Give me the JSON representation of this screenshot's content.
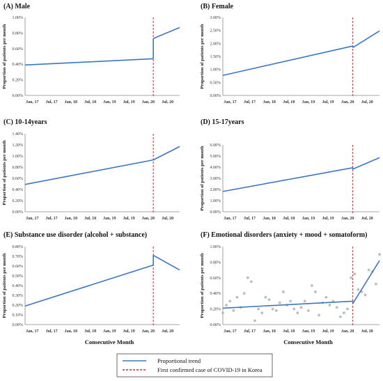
{
  "chart_data": [
    {
      "type": "line",
      "title": "(A) Male",
      "ylabel": "Proportion of  patients per month",
      "xlabel": "",
      "x_ticks": [
        "Jan, 17",
        "Jul, 17",
        "Jan, 18",
        "Jul, 18",
        "Jan, 19",
        "Jul, 19",
        "Jan, 20",
        "Jul, 20"
      ],
      "y_ticks": [
        "0.00%",
        "0.20%",
        "0.40%",
        "0.60%",
        "0.80%",
        "1.00%"
      ],
      "ylim": [
        0,
        1.0
      ],
      "xlim": [
        0,
        44
      ],
      "covid_x": 36.5,
      "series": [
        {
          "x": [
            0,
            36.5
          ],
          "y": [
            0.39,
            0.47
          ]
        },
        {
          "x": [
            36.5,
            44
          ],
          "y": [
            0.73,
            0.87
          ]
        }
      ]
    },
    {
      "type": "line",
      "title": "(B) Female",
      "ylabel": "Proportion of  patients per month",
      "xlabel": "",
      "x_ticks": [
        "Jan, 17",
        "Jul, 17",
        "Jan, 18",
        "Jul, 18",
        "Jan, 19",
        "Jul, 19",
        "Jan, 20",
        "Jul, 20"
      ],
      "y_ticks": [
        "0.00%",
        "0.50%",
        "1.00%",
        "1.50%",
        "2.00%",
        "2.50%",
        "3.00%"
      ],
      "ylim": [
        0,
        3.0
      ],
      "xlim": [
        0,
        44
      ],
      "covid_x": 36.5,
      "series": [
        {
          "x": [
            0,
            36.5
          ],
          "y": [
            0.77,
            1.9
          ]
        },
        {
          "x": [
            36.5,
            44
          ],
          "y": [
            1.84,
            2.48
          ]
        }
      ]
    },
    {
      "type": "line",
      "title": "(C) 10-14years",
      "ylabel": "Proportion of  patients per month",
      "xlabel": "",
      "x_ticks": [
        "Jan, 17",
        "Jul, 17",
        "Jan, 18",
        "Jul, 18",
        "Jan, 19",
        "Jul, 19",
        "Jan, 20",
        "Jul, 20"
      ],
      "y_ticks": [
        "0.00%",
        "0.20%",
        "0.40%",
        "0.60%",
        "0.80%",
        "1.00%",
        "1.20%",
        "1.40%"
      ],
      "ylim": [
        0,
        1.4
      ],
      "xlim": [
        0,
        44
      ],
      "covid_x": 36.5,
      "series": [
        {
          "x": [
            0,
            36.5
          ],
          "y": [
            0.49,
            0.93
          ]
        },
        {
          "x": [
            36.5,
            44
          ],
          "y": [
            0.93,
            1.17
          ]
        }
      ]
    },
    {
      "type": "line",
      "title": "(D) 15-17years",
      "ylabel": "Proportion of  patients per month",
      "xlabel": "",
      "x_ticks": [
        "Jan, 17",
        "Jul, 17",
        "Jan, 18",
        "Jul, 18",
        "Jan, 19",
        "Jul, 19",
        "Jan, 20",
        "Jul, 20"
      ],
      "y_ticks": [
        "0.00%",
        "1.00%",
        "2.00%",
        "3.00%",
        "4.00%",
        "5.00%",
        "6.00%"
      ],
      "ylim": [
        0,
        6.0
      ],
      "xlim": [
        0,
        44
      ],
      "covid_x": 36.5,
      "series": [
        {
          "x": [
            0,
            36.5
          ],
          "y": [
            1.82,
            3.95
          ]
        },
        {
          "x": [
            36.5,
            44
          ],
          "y": [
            3.82,
            4.85
          ]
        }
      ]
    },
    {
      "type": "line",
      "title": "(E) Substance use disorder (alcohol + substance)",
      "ylabel": "Proportion of  patients per month",
      "xlabel": "Consecutive Month",
      "x_ticks": [
        "Jan, 17",
        "Jul, 17",
        "Jan, 18",
        "Jul, 18",
        "Jan, 19",
        "Jul, 19",
        "Jan, 20",
        "Jul, 20"
      ],
      "y_ticks": [
        "0.00%",
        "0.10%",
        "0.20%",
        "0.30%",
        "0.40%",
        "0.50%",
        "0.60%",
        "0.70%",
        "0.80%"
      ],
      "ylim": [
        0,
        0.8
      ],
      "xlim": [
        0,
        44
      ],
      "covid_x": 36.5,
      "series": [
        {
          "x": [
            0,
            36.5
          ],
          "y": [
            0.19,
            0.61
          ]
        },
        {
          "x": [
            36.5,
            44
          ],
          "y": [
            0.71,
            0.56
          ]
        }
      ]
    },
    {
      "type": "line",
      "title": "(F) Emotional disorders (anxiety + mood + somatoform)",
      "ylabel": "Proportion of  patients per month",
      "xlabel": "Consecutive Month",
      "x_ticks": [
        "Jan, 17",
        "Jul, 17",
        "Jan, 18",
        "Jul, 18",
        "Jan, 19",
        "Jul, 19",
        "Jan, 20",
        "Jul, 20"
      ],
      "y_ticks": [
        "0.00%",
        "0.20%",
        "0.40%",
        "0.60%",
        "0.80%",
        "1.00%"
      ],
      "ylim": [
        0,
        1.0
      ],
      "xlim": [
        0,
        44
      ],
      "covid_x": 36.5,
      "series": [
        {
          "x": [
            0,
            36.5
          ],
          "y": [
            0.21,
            0.3
          ]
        },
        {
          "x": [
            36.5,
            44
          ],
          "y": [
            0.27,
            0.82
          ]
        }
      ],
      "scatter": {
        "x": [
          0,
          1,
          2,
          3,
          4,
          5,
          6,
          7,
          8,
          9,
          10,
          11,
          12,
          13,
          14,
          15,
          16,
          17,
          18,
          19,
          20,
          21,
          22,
          23,
          24,
          25,
          26,
          27,
          28,
          29,
          30,
          31,
          32,
          33,
          34,
          35,
          36,
          37,
          38,
          39,
          40,
          41,
          42,
          43,
          44
        ],
        "y": [
          0.15,
          0.25,
          0.3,
          0.18,
          0.35,
          0.22,
          0.4,
          0.6,
          0.55,
          0.05,
          0.2,
          0.15,
          0.35,
          0.32,
          0.2,
          0.18,
          0.28,
          0.42,
          0.25,
          0.3,
          0.2,
          0.15,
          0.22,
          0.3,
          0.18,
          0.5,
          0.42,
          0.12,
          0.28,
          0.35,
          0.25,
          0.3,
          0.22,
          0.1,
          0.15,
          0.2,
          0.6,
          0.65,
          0.45,
          0.42,
          0.38,
          0.7,
          0.68,
          0.52,
          0.9
        ]
      }
    }
  ],
  "legend": {
    "items": [
      {
        "label": "Proportional trend",
        "color": "#3a76c4",
        "style": "solid"
      },
      {
        "label": "First confirmed case of COVID-19 in Korea",
        "color": "#e02020",
        "style": "dashed"
      }
    ]
  },
  "colors": {
    "trend": "#3a76c4",
    "covid": "#e02020",
    "scatter": "#bdbdbd",
    "axis": "#888888"
  }
}
